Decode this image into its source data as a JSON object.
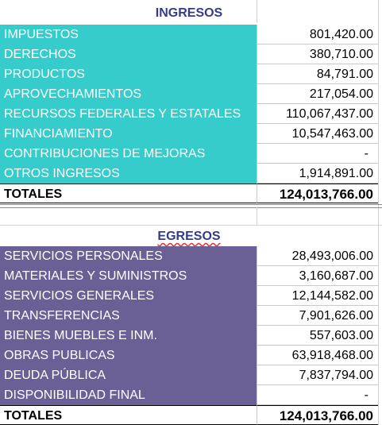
{
  "ingresos": {
    "title": "INGRESOS",
    "rows": [
      {
        "label": "IMPUESTOS",
        "value": "801,420.00"
      },
      {
        "label": "DERECHOS",
        "value": "380,710.00"
      },
      {
        "label": "PRODUCTOS",
        "value": "84,791.00"
      },
      {
        "label": "APROVECHAMIENTOS",
        "value": "217,054.00"
      },
      {
        "label": "RECURSOS FEDERALES Y ESTATALES",
        "value": "110,067,437.00"
      },
      {
        "label": "FINANCIAMIENTO",
        "value": "10,547,463.00"
      },
      {
        "label": "CONTRIBUCIONES DE MEJORAS",
        "value": "-"
      },
      {
        "label": "OTROS INGRESOS",
        "value": "1,914,891.00"
      }
    ],
    "total_label": "TOTALES",
    "total_value": "124,013,766.00",
    "color": "#35cccb"
  },
  "egresos": {
    "title": "EGRESOS",
    "rows": [
      {
        "label": "SERVICIOS PERSONALES",
        "value": "28,493,006.00"
      },
      {
        "label": "MATERIALES Y SUMINISTROS",
        "value": "3,160,687.00"
      },
      {
        "label": "SERVICIOS GENERALES",
        "value": "12,144,582.00"
      },
      {
        "label": "TRANSFERENCIAS",
        "value": "7,901,626.00"
      },
      {
        "label": "BIENES MUEBLES E INM.",
        "value": "557,603.00"
      },
      {
        "label": "OBRAS PUBLICAS",
        "value": "63,918,468.00"
      },
      {
        "label": "DEUDA PÚBLICA",
        "value": "7,837,794.00"
      },
      {
        "label": "DISPONIBILIDAD FINAL",
        "value": "-"
      }
    ],
    "total_label": "TOTALES",
    "total_value": "124,013,766.00",
    "color": "#6a6096"
  },
  "title_color": "#353b8c"
}
